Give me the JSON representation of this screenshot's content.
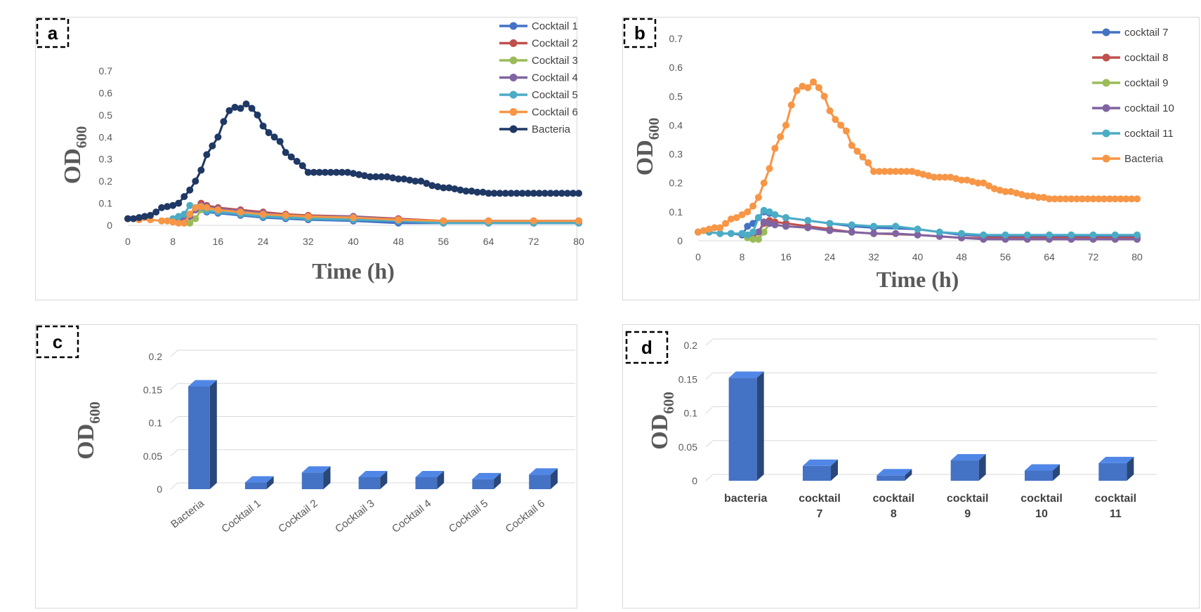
{
  "chart_data": [
    {
      "panel": "a",
      "type": "line",
      "ylabel_main": "OD",
      "ylabel_sub": "600",
      "xlabel": "Time  (h)",
      "xlim": [
        0,
        80
      ],
      "ylim": [
        0,
        0.7
      ],
      "xticks": [
        0,
        8,
        16,
        24,
        32,
        40,
        48,
        56,
        64,
        72,
        80
      ],
      "yticks": [
        0,
        0.1,
        0.2,
        0.3,
        0.4,
        0.5,
        0.6,
        0.7
      ],
      "ytick_labels": [
        "0",
        "0.1",
        "0.2",
        "0.3",
        "0.4",
        "0.5",
        "0.6",
        "0.7"
      ],
      "legend_position": "top-right",
      "series": [
        {
          "name": "Cocktail  1",
          "color": "#4472c4",
          "x": [
            9,
            10,
            11,
            12,
            14,
            16,
            20,
            24,
            28,
            32,
            40,
            48,
            56,
            64,
            72,
            80
          ],
          "y": [
            0.02,
            0.03,
            0.05,
            0.07,
            0.06,
            0.055,
            0.045,
            0.035,
            0.03,
            0.025,
            0.02,
            0.01,
            0.01,
            0.01,
            0.01,
            0.01
          ]
        },
        {
          "name": "Cocktail  2",
          "color": "#c0504d",
          "x": [
            10,
            11,
            12,
            13,
            14,
            16,
            20,
            24,
            28,
            32,
            40,
            48,
            56,
            64,
            72,
            80
          ],
          "y": [
            0.02,
            0.05,
            0.08,
            0.1,
            0.09,
            0.08,
            0.07,
            0.06,
            0.05,
            0.045,
            0.04,
            0.03,
            0.02,
            0.02,
            0.02,
            0.02
          ]
        },
        {
          "name": "Cocktail  3",
          "color": "#9bbb59",
          "x": [
            10,
            11,
            12,
            13,
            14,
            16,
            20,
            24,
            28,
            32,
            40,
            48,
            56,
            64,
            72,
            80
          ],
          "y": [
            0.01,
            0.01,
            0.03,
            0.07,
            0.075,
            0.07,
            0.06,
            0.05,
            0.04,
            0.035,
            0.03,
            0.02,
            0.015,
            0.015,
            0.015,
            0.015
          ]
        },
        {
          "name": "Cocktail  4",
          "color": "#8064a2",
          "x": [
            10,
            11,
            12,
            13,
            14,
            16,
            20,
            24,
            28,
            32,
            40,
            48,
            56,
            64,
            72,
            80
          ],
          "y": [
            0.02,
            0.04,
            0.07,
            0.09,
            0.085,
            0.075,
            0.065,
            0.055,
            0.045,
            0.04,
            0.04,
            0.025,
            0.02,
            0.02,
            0.02,
            0.02
          ]
        },
        {
          "name": "Cocktail  5",
          "color": "#4bacc6",
          "x": [
            8,
            9,
            10,
            11,
            12,
            14,
            16,
            20,
            24,
            28,
            32,
            40,
            48,
            56,
            64,
            72,
            80
          ],
          "y": [
            0.03,
            0.04,
            0.05,
            0.09,
            0.08,
            0.065,
            0.06,
            0.05,
            0.04,
            0.035,
            0.03,
            0.025,
            0.02,
            0.01,
            0.01,
            0.01,
            0.01
          ]
        },
        {
          "name": "Cocktail  6",
          "color": "#f79646",
          "x": [
            0,
            2,
            4,
            6,
            7,
            8,
            9,
            10,
            11,
            12,
            13,
            14,
            16,
            20,
            24,
            28,
            32,
            40,
            48,
            56,
            64,
            72,
            80
          ],
          "y": [
            0.03,
            0.025,
            0.025,
            0.02,
            0.02,
            0.015,
            0.01,
            0.01,
            0.05,
            0.08,
            0.085,
            0.08,
            0.07,
            0.06,
            0.05,
            0.045,
            0.04,
            0.035,
            0.025,
            0.02,
            0.02,
            0.02,
            0.02
          ]
        },
        {
          "name": "Bacteria",
          "color": "#1f3864",
          "x": [
            0,
            1,
            2,
            3,
            4,
            5,
            6,
            7,
            8,
            9,
            10,
            11,
            12,
            13,
            14,
            15,
            16,
            17,
            18,
            19,
            20,
            21,
            22,
            23,
            24,
            25,
            26,
            27,
            28,
            29,
            30,
            31,
            32,
            33,
            34,
            35,
            36,
            37,
            38,
            39,
            40,
            41,
            42,
            43,
            44,
            45,
            46,
            47,
            48,
            49,
            50,
            51,
            52,
            53,
            54,
            55,
            56,
            57,
            58,
            59,
            60,
            61,
            62,
            63,
            64,
            65,
            66,
            67,
            68,
            69,
            70,
            71,
            72,
            73,
            74,
            75,
            76,
            77,
            78,
            79,
            80
          ],
          "y": [
            0.03,
            0.03,
            0.035,
            0.04,
            0.045,
            0.06,
            0.08,
            0.085,
            0.09,
            0.1,
            0.13,
            0.16,
            0.2,
            0.25,
            0.32,
            0.36,
            0.4,
            0.47,
            0.52,
            0.535,
            0.53,
            0.55,
            0.53,
            0.5,
            0.45,
            0.42,
            0.4,
            0.38,
            0.33,
            0.31,
            0.29,
            0.27,
            0.24,
            0.24,
            0.24,
            0.24,
            0.24,
            0.24,
            0.24,
            0.24,
            0.235,
            0.23,
            0.225,
            0.22,
            0.22,
            0.22,
            0.22,
            0.215,
            0.21,
            0.21,
            0.205,
            0.2,
            0.2,
            0.19,
            0.18,
            0.175,
            0.17,
            0.17,
            0.165,
            0.16,
            0.155,
            0.155,
            0.15,
            0.15,
            0.145,
            0.145,
            0.145,
            0.145,
            0.145,
            0.145,
            0.145,
            0.145,
            0.145,
            0.145,
            0.145,
            0.145,
            0.145,
            0.145,
            0.145,
            0.145,
            0.145
          ]
        }
      ]
    },
    {
      "panel": "b",
      "type": "line",
      "ylabel_main": "OD",
      "ylabel_sub": "600",
      "xlabel": "Time  (h)",
      "xlim": [
        0,
        80
      ],
      "ylim": [
        0,
        0.7
      ],
      "xticks": [
        0,
        8,
        16,
        24,
        32,
        40,
        48,
        56,
        64,
        72,
        80
      ],
      "yticks": [
        0,
        0.1,
        0.2,
        0.3,
        0.4,
        0.5,
        0.6,
        0.7
      ],
      "ytick_labels": [
        "0",
        "0.1",
        "0.2",
        "0.3",
        "0.4",
        "0.5",
        "0.6",
        "0.7"
      ],
      "legend_position": "top-right",
      "series": [
        {
          "name": "cocktail 7",
          "color": "#4472c4",
          "x": [
            0,
            2,
            4,
            6,
            8,
            9,
            10,
            11,
            12,
            13,
            14,
            16,
            20,
            24,
            28,
            32,
            40,
            48,
            56,
            64,
            72,
            80
          ],
          "y": [
            0.03,
            0.03,
            0.025,
            0.025,
            0.02,
            0.05,
            0.06,
            0.08,
            0.1,
            0.095,
            0.09,
            0.08,
            0.07,
            0.06,
            0.05,
            0.045,
            0.04,
            0.02,
            0.015,
            0.015,
            0.015,
            0.015
          ]
        },
        {
          "name": "cocktail 8",
          "color": "#c0504d",
          "x": [
            10,
            11,
            12,
            13,
            14,
            16,
            20,
            24,
            28,
            32,
            40,
            48,
            56,
            64,
            72,
            80
          ],
          "y": [
            0.01,
            0.03,
            0.06,
            0.07,
            0.065,
            0.06,
            0.05,
            0.04,
            0.03,
            0.025,
            0.02,
            0.01,
            0.01,
            0.01,
            0.01,
            0.01
          ]
        },
        {
          "name": "cocktail 9",
          "color": "#9bbb59",
          "x": [
            9,
            10,
            11,
            12,
            13
          ],
          "y": [
            0.01,
            0.005,
            0.005,
            0.03,
            0.06
          ]
        },
        {
          "name": "cocktail 10",
          "color": "#8064a2",
          "x": [
            11,
            12,
            13,
            14,
            16,
            20,
            24,
            28,
            32,
            36,
            40,
            44,
            48,
            52,
            56,
            60,
            64,
            68,
            72,
            76,
            80
          ],
          "y": [
            0.03,
            0.065,
            0.06,
            0.055,
            0.05,
            0.045,
            0.035,
            0.03,
            0.025,
            0.025,
            0.02,
            0.015,
            0.01,
            0.005,
            0.005,
            0.005,
            0.005,
            0.005,
            0.005,
            0.005,
            0.005
          ]
        },
        {
          "name": "cocktail 11",
          "color": "#4bacc6",
          "x": [
            0,
            2,
            4,
            6,
            8,
            9,
            10,
            11,
            12,
            13,
            14,
            16,
            20,
            24,
            28,
            32,
            36,
            40,
            44,
            48,
            52,
            56,
            60,
            64,
            68,
            72,
            76,
            80
          ],
          "y": [
            0.03,
            0.03,
            0.025,
            0.025,
            0.025,
            0.02,
            0.03,
            0.08,
            0.105,
            0.1,
            0.09,
            0.08,
            0.07,
            0.06,
            0.055,
            0.05,
            0.05,
            0.04,
            0.03,
            0.025,
            0.02,
            0.02,
            0.02,
            0.02,
            0.02,
            0.02,
            0.02,
            0.02
          ]
        },
        {
          "name": "Bacteria",
          "color": "#f79646",
          "x": [
            0,
            1,
            2,
            3,
            4,
            5,
            6,
            7,
            8,
            9,
            10,
            11,
            12,
            13,
            14,
            15,
            16,
            17,
            18,
            19,
            20,
            21,
            22,
            23,
            24,
            25,
            26,
            27,
            28,
            29,
            30,
            31,
            32,
            33,
            34,
            35,
            36,
            37,
            38,
            39,
            40,
            41,
            42,
            43,
            44,
            45,
            46,
            47,
            48,
            49,
            50,
            51,
            52,
            53,
            54,
            55,
            56,
            57,
            58,
            59,
            60,
            61,
            62,
            63,
            64,
            65,
            66,
            67,
            68,
            69,
            70,
            71,
            72,
            73,
            74,
            75,
            76,
            77,
            78,
            79,
            80
          ],
          "y": [
            0.03,
            0.035,
            0.04,
            0.045,
            0.045,
            0.06,
            0.075,
            0.08,
            0.09,
            0.1,
            0.12,
            0.15,
            0.2,
            0.25,
            0.32,
            0.36,
            0.4,
            0.47,
            0.52,
            0.535,
            0.53,
            0.55,
            0.53,
            0.5,
            0.45,
            0.42,
            0.4,
            0.38,
            0.33,
            0.31,
            0.29,
            0.27,
            0.24,
            0.24,
            0.24,
            0.24,
            0.24,
            0.24,
            0.24,
            0.24,
            0.235,
            0.23,
            0.225,
            0.22,
            0.22,
            0.22,
            0.22,
            0.215,
            0.21,
            0.21,
            0.205,
            0.2,
            0.2,
            0.19,
            0.18,
            0.175,
            0.17,
            0.17,
            0.165,
            0.16,
            0.155,
            0.155,
            0.15,
            0.15,
            0.145,
            0.145,
            0.145,
            0.145,
            0.145,
            0.145,
            0.145,
            0.145,
            0.145,
            0.145,
            0.145,
            0.145,
            0.145,
            0.145,
            0.145,
            0.145,
            0.145
          ]
        }
      ]
    },
    {
      "panel": "c",
      "type": "bar",
      "ylabel_main": "OD",
      "ylabel_sub": "600",
      "ylim": [
        0,
        0.2
      ],
      "yticks": [
        0,
        0.05,
        0.1,
        0.15,
        0.2
      ],
      "ytick_labels": [
        "0",
        "0.05",
        "0.1",
        "0.15",
        "0.2"
      ],
      "categories": [
        "Bacteria",
        "Cocktail  1",
        "Cocktail  2",
        "Cocktail  3",
        "Cocktail  4",
        "Cocktail  5",
        "Cocktail  6"
      ],
      "values": [
        0.155,
        0.01,
        0.025,
        0.018,
        0.018,
        0.015,
        0.022
      ],
      "bar_color": "#4472c4"
    },
    {
      "panel": "d",
      "type": "bar",
      "ylabel_main": "OD",
      "ylabel_sub": "600",
      "ylim": [
        0,
        0.2
      ],
      "yticks": [
        0,
        0.05,
        0.1,
        0.15,
        0.2
      ],
      "ytick_labels": [
        "0",
        "0.05",
        "0.1",
        "0.15",
        "0.2"
      ],
      "categories": [
        "bacteria",
        "cocktail 7",
        "cocktail 8",
        "cocktail 9",
        "cocktail 10",
        "cocktail 11"
      ],
      "category_lines": [
        [
          "bacteria"
        ],
        [
          "cocktail",
          "7"
        ],
        [
          "cocktail",
          "8"
        ],
        [
          "cocktail",
          "9"
        ],
        [
          "cocktail",
          "10"
        ],
        [
          "cocktail",
          "11"
        ]
      ],
      "values": [
        0.152,
        0.022,
        0.008,
        0.03,
        0.015,
        0.026
      ],
      "bar_color": "#4472c4"
    }
  ]
}
